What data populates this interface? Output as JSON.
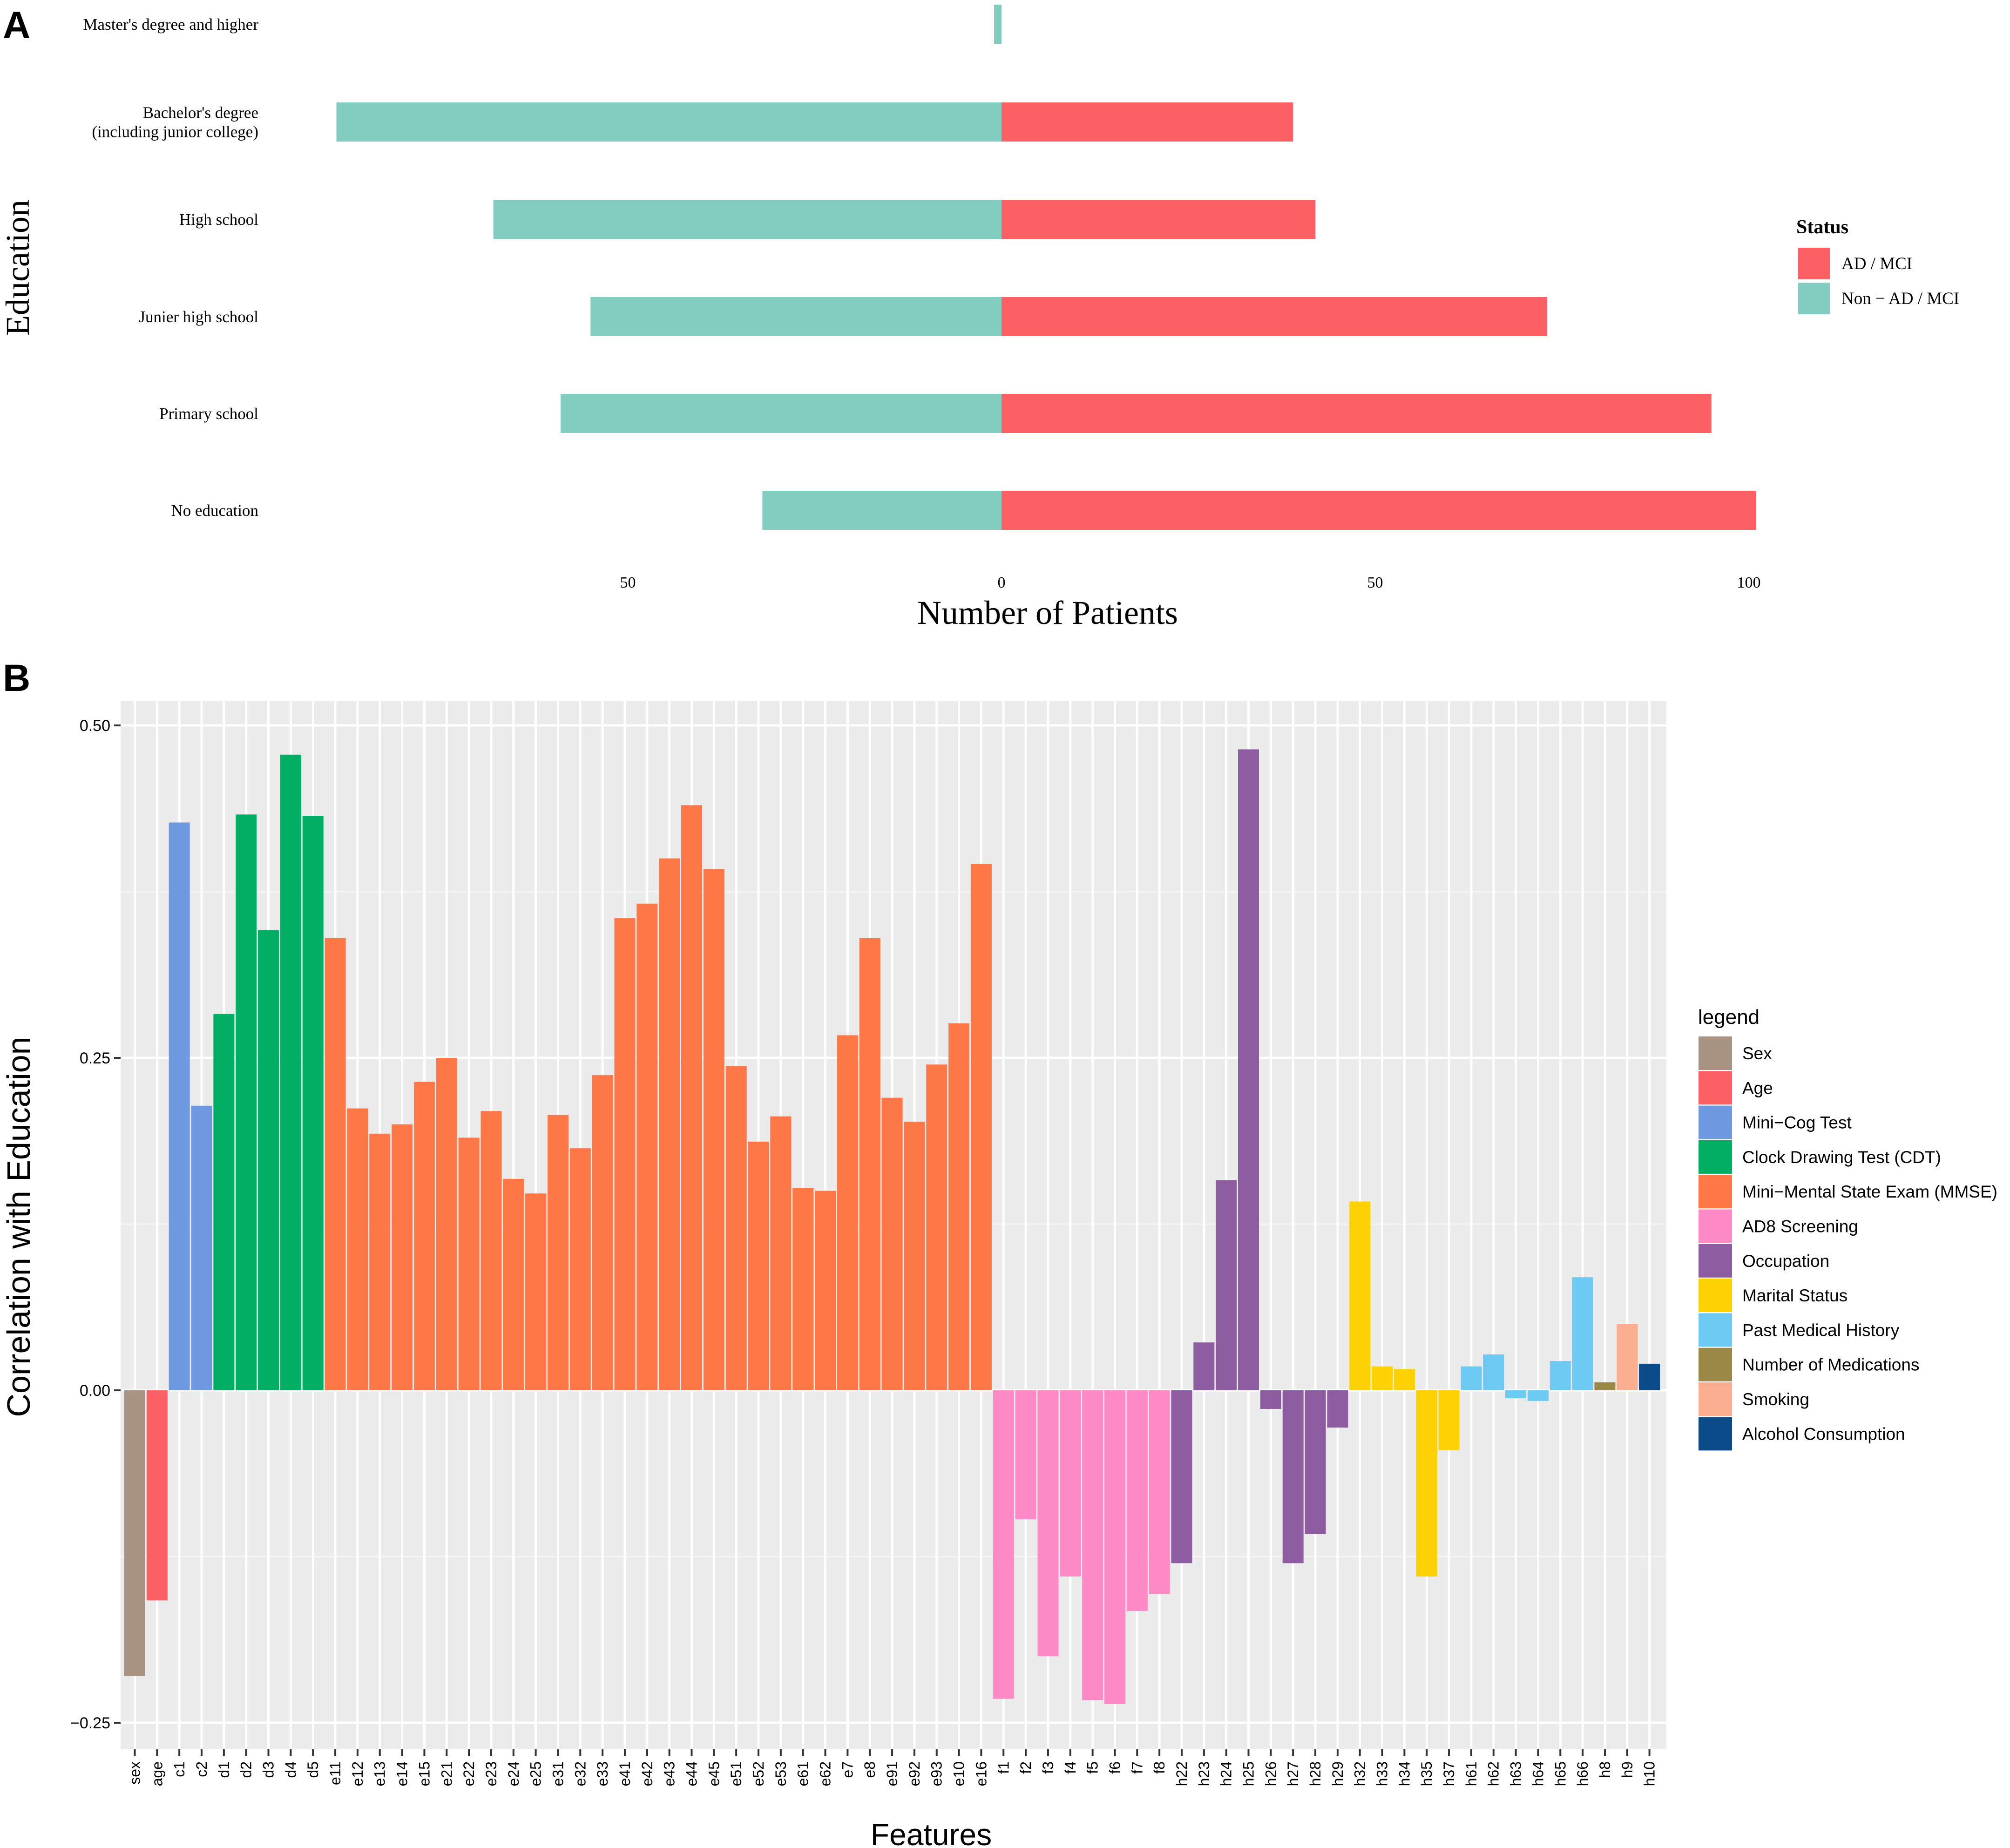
{
  "chart_data": [
    {
      "panel_label": "A",
      "type": "bar",
      "orientation": "horizontal-diverging",
      "xlabel": "Number of Patients",
      "ylabel": "Education",
      "xlim": [
        -50,
        100
      ],
      "x_ticks": [
        -50,
        0,
        50,
        100
      ],
      "x_tick_labels": [
        "50",
        "0",
        "50",
        "100"
      ],
      "categories": [
        "Master's degree and higher",
        "Bachelor's degree\n(including junior college)",
        "High school",
        "Junier high school",
        "Primary school",
        "No education"
      ],
      "series": [
        {
          "name": "AD / MCI",
          "color": "#FC5F64",
          "values": [
            0,
            39,
            42,
            73,
            95,
            101
          ]
        },
        {
          "name": "Non − AD / MCI",
          "color": "#82CDBF",
          "values": [
            1,
            89,
            68,
            55,
            59,
            32
          ]
        }
      ],
      "legend": {
        "title": "Status",
        "position": "right"
      }
    },
    {
      "panel_label": "B",
      "type": "bar",
      "xlabel": "Features",
      "ylabel": "Correlation with Education",
      "ylim": [
        -0.25,
        0.52
      ],
      "y_ticks": [
        -0.25,
        0,
        0.25,
        0.5
      ],
      "y_tick_labels": [
        "−0.25",
        "0.00",
        "0.25",
        "0.50"
      ],
      "grid": true,
      "legend": {
        "title": "legend",
        "position": "right",
        "entries": [
          {
            "name": "Sex",
            "color": "#A89382"
          },
          {
            "name": "Age",
            "color": "#FC5F64"
          },
          {
            "name": "Mini−Cog Test",
            "color": "#6E99E0"
          },
          {
            "name": "Clock Drawing Test (CDT)",
            "color": "#02AE64"
          },
          {
            "name": "Mini−Mental State Exam (MMSE)",
            "color": "#FD7747"
          },
          {
            "name": "AD8 Screening",
            "color": "#FD8AC6"
          },
          {
            "name": "Occupation",
            "color": "#8E5CA0"
          },
          {
            "name": "Marital Status",
            "color": "#FDD103"
          },
          {
            "name": "Past Medical History",
            "color": "#6DCAF2"
          },
          {
            "name": "Number of Medications",
            "color": "#9B8746"
          },
          {
            "name": "Smoking",
            "color": "#FBAE90"
          },
          {
            "name": "Alcohol Consumption",
            "color": "#0C4B8A"
          }
        ]
      },
      "categories": [
        "sex",
        "age",
        "c1",
        "c2",
        "d1",
        "d2",
        "d3",
        "d4",
        "d5",
        "e11",
        "e12",
        "e13",
        "e14",
        "e15",
        "e21",
        "e22",
        "e23",
        "e24",
        "e25",
        "e31",
        "e32",
        "e33",
        "e41",
        "e42",
        "e43",
        "e44",
        "e45",
        "e51",
        "e52",
        "e53",
        "e61",
        "e62",
        "e7",
        "e8",
        "e91",
        "e92",
        "e93",
        "e10",
        "e16",
        "f1",
        "f2",
        "f3",
        "f4",
        "f5",
        "f6",
        "f7",
        "f8",
        "h22",
        "h23",
        "h24",
        "h25",
        "h26",
        "h27",
        "h28",
        "h29",
        "h32",
        "h33",
        "h34",
        "h35",
        "h37",
        "h61",
        "h62",
        "h63",
        "h64",
        "h65",
        "h66",
        "h8",
        "h9",
        "h10"
      ],
      "values": [
        -0.215,
        -0.158,
        0.427,
        0.214,
        0.283,
        0.433,
        0.346,
        0.478,
        0.432,
        0.34,
        0.212,
        0.193,
        0.2,
        0.232,
        0.25,
        0.19,
        0.21,
        0.159,
        0.148,
        0.207,
        0.182,
        0.237,
        0.355,
        0.366,
        0.4,
        0.44,
        0.392,
        0.244,
        0.187,
        0.206,
        0.152,
        0.15,
        0.267,
        0.34,
        0.22,
        0.202,
        0.245,
        0.276,
        0.396,
        -0.232,
        -0.097,
        -0.2,
        -0.14,
        -0.233,
        -0.236,
        -0.166,
        -0.153,
        -0.13,
        0.036,
        0.158,
        0.482,
        -0.014,
        -0.13,
        -0.108,
        -0.028,
        0.142,
        0.018,
        0.016,
        -0.14,
        -0.045,
        0.018,
        0.027,
        -0.006,
        -0.008,
        0.022,
        0.085,
        0.006,
        0.05,
        0.02
      ],
      "groups": [
        "Sex",
        "Age",
        "Mini−Cog Test",
        "Mini−Cog Test",
        "Clock Drawing Test (CDT)",
        "Clock Drawing Test (CDT)",
        "Clock Drawing Test (CDT)",
        "Clock Drawing Test (CDT)",
        "Clock Drawing Test (CDT)",
        "Mini−Mental State Exam (MMSE)",
        "Mini−Mental State Exam (MMSE)",
        "Mini−Mental State Exam (MMSE)",
        "Mini−Mental State Exam (MMSE)",
        "Mini−Mental State Exam (MMSE)",
        "Mini−Mental State Exam (MMSE)",
        "Mini−Mental State Exam (MMSE)",
        "Mini−Mental State Exam (MMSE)",
        "Mini−Mental State Exam (MMSE)",
        "Mini−Mental State Exam (MMSE)",
        "Mini−Mental State Exam (MMSE)",
        "Mini−Mental State Exam (MMSE)",
        "Mini−Mental State Exam (MMSE)",
        "Mini−Mental State Exam (MMSE)",
        "Mini−Mental State Exam (MMSE)",
        "Mini−Mental State Exam (MMSE)",
        "Mini−Mental State Exam (MMSE)",
        "Mini−Mental State Exam (MMSE)",
        "Mini−Mental State Exam (MMSE)",
        "Mini−Mental State Exam (MMSE)",
        "Mini−Mental State Exam (MMSE)",
        "Mini−Mental State Exam (MMSE)",
        "Mini−Mental State Exam (MMSE)",
        "Mini−Mental State Exam (MMSE)",
        "Mini−Mental State Exam (MMSE)",
        "Mini−Mental State Exam (MMSE)",
        "Mini−Mental State Exam (MMSE)",
        "Mini−Mental State Exam (MMSE)",
        "Mini−Mental State Exam (MMSE)",
        "Mini−Mental State Exam (MMSE)",
        "AD8 Screening",
        "AD8 Screening",
        "AD8 Screening",
        "AD8 Screening",
        "AD8 Screening",
        "AD8 Screening",
        "AD8 Screening",
        "AD8 Screening",
        "Occupation",
        "Occupation",
        "Occupation",
        "Occupation",
        "Occupation",
        "Occupation",
        "Occupation",
        "Occupation",
        "Marital Status",
        "Marital Status",
        "Marital Status",
        "Marital Status",
        "Marital Status",
        "Past Medical History",
        "Past Medical History",
        "Past Medical History",
        "Past Medical History",
        "Past Medical History",
        "Past Medical History",
        "Number of Medications",
        "Smoking",
        "Alcohol Consumption"
      ]
    }
  ]
}
